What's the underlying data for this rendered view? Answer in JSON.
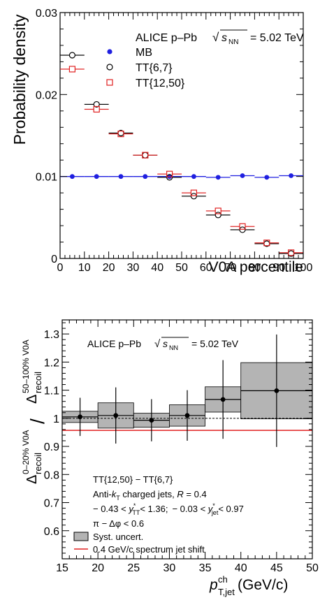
{
  "chart_data": [
    {
      "type": "scatter",
      "xlabel": "V0A percentile",
      "ylabel": "Probability density",
      "xlim": [
        0,
        100
      ],
      "ylim": [
        0,
        0.03
      ],
      "x_ticks": [
        "0",
        "10",
        "20",
        "30",
        "40",
        "50",
        "60",
        "70",
        "80",
        "90",
        "100"
      ],
      "y_ticks": [
        "0",
        "0.01",
        "0.02",
        "0.03"
      ],
      "annotation": {
        "prefix": "ALICE p–Pb",
        "energy": "= 5.02 TeV"
      },
      "x": [
        5,
        15,
        25,
        35,
        45,
        55,
        65,
        75,
        85,
        95
      ],
      "series": [
        {
          "name": "MB",
          "color": "#1f1fe0",
          "marker": "filled-circle",
          "values": [
            0.01,
            0.01,
            0.01,
            0.01,
            0.01,
            0.01,
            0.0099,
            0.0101,
            0.0099,
            0.0101
          ]
        },
        {
          "name": "TT{6,7}",
          "color": "#000000",
          "marker": "open-circle",
          "values": [
            0.0248,
            0.0188,
            0.0153,
            0.0126,
            0.0099,
            0.0076,
            0.0053,
            0.0035,
            0.0018,
            0.0006
          ]
        },
        {
          "name": "TT{12,50}",
          "color": "#e02020",
          "marker": "open-square",
          "values": [
            0.0231,
            0.0182,
            0.0152,
            0.0126,
            0.0103,
            0.008,
            0.0058,
            0.0039,
            0.0019,
            0.0007
          ]
        }
      ]
    },
    {
      "type": "scatter",
      "xlabel": "(GeV/c)",
      "ylabel": "ratio",
      "xlim": [
        15,
        50
      ],
      "ylim": [
        0.5,
        1.35
      ],
      "x_ticks": [
        "15",
        "20",
        "25",
        "30",
        "35",
        "40",
        "45",
        "50"
      ],
      "y_ticks": [
        "0.6",
        "0.7",
        "0.8",
        "0.9",
        "1",
        "1.1",
        "1.2",
        "1.3"
      ],
      "annotation": {
        "prefix": "ALICE p–Pb",
        "energy": "= 5.02 TeV"
      },
      "text_lines": {
        "selection": "TT{12,50} − TT{6,7}",
        "jets_prefix": "Anti-",
        "jets_suffix": " charged jets, ",
        "radius": "= 0.4",
        "rapidity_tt": "− 0.43 < ",
        "rapidity_tt_end": "< 1.36;",
        "rapidity_jet": "− 0.03 < ",
        "rapidity_jet_end": "< 0.97",
        "dphi": "π − Δφ < 0.6"
      },
      "legend": [
        "Syst. uncert.",
        "0.4 GeV/c spectrum jet shift"
      ],
      "x": [
        17.5,
        22.5,
        27.5,
        32.5,
        37.5,
        45
      ],
      "x_err": [
        2.5,
        2.5,
        2.5,
        2.5,
        2.5,
        5
      ],
      "values": [
        1.005,
        1.01,
        0.993,
        1.01,
        1.067,
        1.098
      ],
      "stat_err": [
        0.068,
        0.1,
        0.075,
        0.09,
        0.14,
        0.2
      ],
      "syst_err": [
        0.02,
        0.045,
        0.025,
        0.038,
        0.045,
        0.1
      ],
      "reference_line": 1.0,
      "shift_line": 0.957,
      "colors": {
        "syst": "#b4b4b4",
        "shift": "#e02020"
      }
    }
  ]
}
